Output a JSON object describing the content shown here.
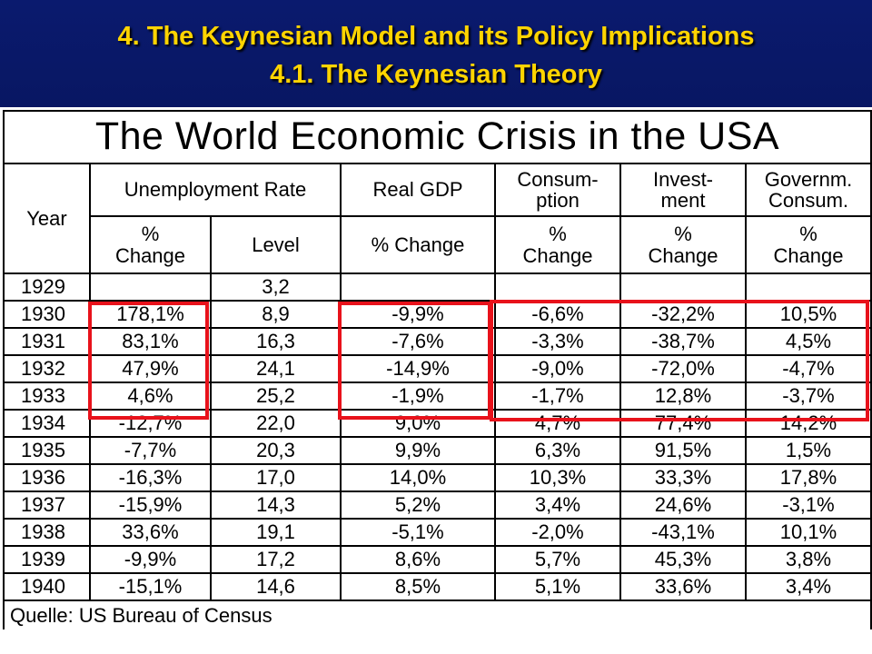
{
  "header": {
    "title": "4. The Keynesian Model and its Policy Implications",
    "subtitle": "4.1. The Keynesian Theory"
  },
  "table": {
    "title": "The World Economic Crisis in the USA",
    "year_label": "Year",
    "groups": {
      "unemployment": "Unemployment Rate",
      "gdp": "Real GDP",
      "consumption": [
        "Consum-",
        "ption"
      ],
      "investment": [
        "Invest-",
        "ment"
      ],
      "government": [
        "Governm.",
        "Consum."
      ]
    },
    "subheaders": {
      "pct_change": [
        "%",
        "Change"
      ],
      "level": "Level",
      "gdp_change": "% Change"
    },
    "rows": [
      [
        "1929",
        "",
        "3,2",
        "",
        "",
        "",
        ""
      ],
      [
        "1930",
        "178,1%",
        "8,9",
        "-9,9%",
        "-6,6%",
        "-32,2%",
        "10,5%"
      ],
      [
        "1931",
        "83,1%",
        "16,3",
        "-7,6%",
        "-3,3%",
        "-38,7%",
        "4,5%"
      ],
      [
        "1932",
        "47,9%",
        "24,1",
        "-14,9%",
        "-9,0%",
        "-72,0%",
        "-4,7%"
      ],
      [
        "1933",
        "4,6%",
        "25,2",
        "-1,9%",
        "-1,7%",
        "12,8%",
        "-3,7%"
      ],
      [
        "1934",
        "-12,7%",
        "22,0",
        "9,0%",
        "4,7%",
        "77,4%",
        "14,2%"
      ],
      [
        "1935",
        "-7,7%",
        "20,3",
        "9,9%",
        "6,3%",
        "91,5%",
        "1,5%"
      ],
      [
        "1936",
        "-16,3%",
        "17,0",
        "14,0%",
        "10,3%",
        "33,3%",
        "17,8%"
      ],
      [
        "1937",
        "-15,9%",
        "14,3",
        "5,2%",
        "3,4%",
        "24,6%",
        "-3,1%"
      ],
      [
        "1938",
        "33,6%",
        "19,1",
        "-5,1%",
        "-2,0%",
        "-43,1%",
        "10,1%"
      ],
      [
        "1939",
        "-9,9%",
        "17,2",
        "8,6%",
        "5,7%",
        "45,3%",
        "3,8%"
      ],
      [
        "1940",
        "-15,1%",
        "14,6",
        "8,5%",
        "5,1%",
        "33,6%",
        "3,4%"
      ]
    ],
    "source": "Quelle: US Bureau of Census",
    "highlight_color": "#e8121b"
  }
}
